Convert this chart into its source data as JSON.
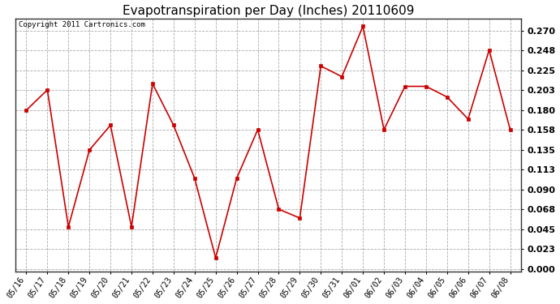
{
  "title": "Evapotranspiration per Day (Inches) 20110609",
  "copyright": "Copyright 2011 Cartronics.com",
  "dates": [
    "05/16",
    "05/17",
    "05/18",
    "05/19",
    "05/20",
    "05/21",
    "05/22",
    "05/23",
    "05/24",
    "05/25",
    "05/26",
    "05/27",
    "05/28",
    "05/29",
    "05/30",
    "05/31",
    "06/01",
    "06/02",
    "06/03",
    "06/04",
    "06/05",
    "06/06",
    "06/07",
    "06/08"
  ],
  "values": [
    0.18,
    0.203,
    0.048,
    0.135,
    0.163,
    0.048,
    0.21,
    0.163,
    0.103,
    0.013,
    0.103,
    0.158,
    0.068,
    0.058,
    0.23,
    0.218,
    0.275,
    0.158,
    0.207,
    0.207,
    0.195,
    0.17,
    0.248,
    0.158
  ],
  "line_color": "#cc0000",
  "marker_color": "#cc0000",
  "bg_color": "#ffffff",
  "plot_bg_color": "#ffffff",
  "grid_color": "#aaaaaa",
  "ylim": [
    -0.003,
    0.2835
  ],
  "yticks": [
    0.0,
    0.023,
    0.045,
    0.068,
    0.09,
    0.113,
    0.135,
    0.158,
    0.18,
    0.203,
    0.225,
    0.248,
    0.27
  ],
  "title_fontsize": 11,
  "copyright_fontsize": 6.5,
  "tick_label_fontsize": 7,
  "ytick_fontsize": 8
}
